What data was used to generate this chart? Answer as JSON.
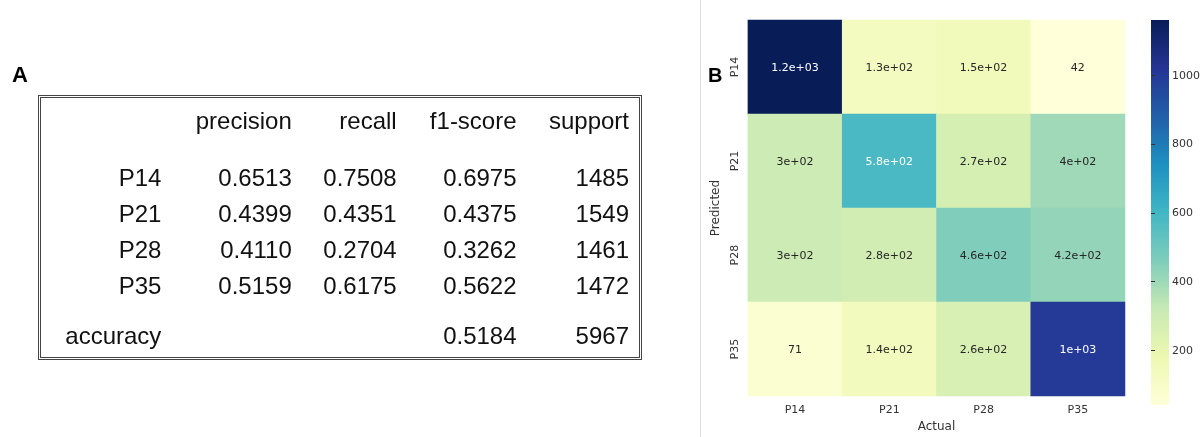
{
  "chart_data": [
    {
      "type": "other",
      "title": "A",
      "categories": [
        "precision",
        "recall",
        "f1-score",
        "support"
      ],
      "y_categories": [
        "P14",
        "P21",
        "P28",
        "P35",
        "accuracy"
      ],
      "cell_labels": [
        [
          "0.6513",
          "0.7508",
          "0.6975",
          "1485"
        ],
        [
          "0.4399",
          "0.4351",
          "0.4375",
          "1549"
        ],
        [
          "0.4110",
          "0.2704",
          "0.3262",
          "1461"
        ],
        [
          "0.5159",
          "0.6175",
          "0.5622",
          "1472"
        ],
        [
          null,
          null,
          "0.5184",
          "5967"
        ]
      ]
    },
    {
      "type": "heatmap",
      "title": "B",
      "xlabel": "Actual",
      "ylabel": "Predicted",
      "categories": [
        "P14",
        "P21",
        "P28",
        "P35"
      ],
      "y_categories": [
        "P14",
        "P21",
        "P28",
        "P35"
      ],
      "cells": [
        [
          1160,
          130,
          150,
          42
        ],
        [
          300,
          580,
          270,
          400
        ],
        [
          300,
          280,
          460,
          420
        ],
        [
          71,
          140,
          260,
          1000
        ]
      ],
      "cell_labels": [
        [
          "1.2e+03",
          "1.3e+02",
          "1.5e+02",
          "42"
        ],
        [
          "3e+02",
          "5.8e+02",
          "2.7e+02",
          "4e+02"
        ],
        [
          "3e+02",
          "2.8e+02",
          "4.6e+02",
          "4.2e+02"
        ],
        [
          "71",
          "1.4e+02",
          "2.6e+02",
          "1e+03"
        ]
      ],
      "clim": [
        42,
        1160
      ],
      "cticks": [
        200,
        400,
        600,
        800,
        1000
      ]
    }
  ]
}
